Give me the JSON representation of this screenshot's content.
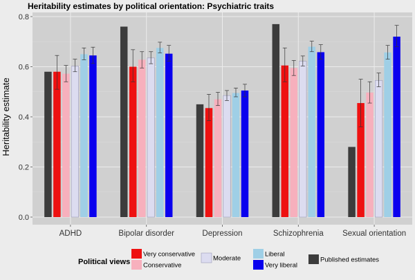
{
  "chart_data": {
    "type": "bar",
    "title": "Heritability estimates by political orientation: Psychiatric traits",
    "xlabel": "",
    "ylabel": "Heritability estimate",
    "ylim": [
      0,
      0.82
    ],
    "yticks": [
      0.0,
      0.2,
      0.4,
      0.6,
      0.8
    ],
    "ytick_labels": [
      "0.0",
      "0.2",
      "0.4",
      "0.6",
      "0.8"
    ],
    "grid": true,
    "categories": [
      "ADHD",
      "Bipolar disorder",
      "Depression",
      "Schizophrenia",
      "Sexual orientation"
    ],
    "series": [
      {
        "key": "published",
        "name": "Published estimates",
        "color": "#3c3c3c",
        "values": [
          0.58,
          0.76,
          0.45,
          0.77,
          0.28
        ],
        "err_low": null,
        "err_high": null
      },
      {
        "key": "very_conservative",
        "name": "Very conservative",
        "color": "#ee1111",
        "values": [
          0.58,
          0.6,
          0.435,
          0.605,
          0.455
        ],
        "err_low": [
          0.51,
          0.54,
          0.385,
          0.54,
          0.36
        ],
        "err_high": [
          0.645,
          0.668,
          0.49,
          0.675,
          0.55
        ]
      },
      {
        "key": "conservative",
        "name": "Conservative",
        "color": "#f7b0bd",
        "values": [
          0.572,
          0.628,
          0.47,
          0.595,
          0.497
        ],
        "err_low": [
          0.54,
          0.595,
          0.445,
          0.565,
          0.455
        ],
        "err_high": [
          0.605,
          0.66,
          0.498,
          0.625,
          0.54
        ]
      },
      {
        "key": "moderate",
        "name": "Moderate",
        "color": "#dcdcf0",
        "values": [
          0.602,
          0.635,
          0.485,
          0.622,
          0.545
        ],
        "err_low": [
          0.58,
          0.612,
          0.465,
          0.603,
          0.52
        ],
        "err_high": [
          0.63,
          0.66,
          0.505,
          0.643,
          0.575
        ]
      },
      {
        "key": "liberal",
        "name": "Liberal",
        "color": "#9fcfe6",
        "values": [
          0.65,
          0.675,
          0.495,
          0.68,
          0.657
        ],
        "err_low": [
          0.628,
          0.655,
          0.48,
          0.66,
          0.63
        ],
        "err_high": [
          0.675,
          0.698,
          0.515,
          0.702,
          0.685
        ]
      },
      {
        "key": "very_liberal",
        "name": "Very liberal",
        "color": "#0a00ee",
        "values": [
          0.645,
          0.652,
          0.505,
          0.658,
          0.72
        ],
        "err_low": [
          0.613,
          0.622,
          0.48,
          0.63,
          0.68
        ],
        "err_high": [
          0.678,
          0.685,
          0.53,
          0.688,
          0.765
        ]
      }
    ],
    "legend": {
      "title": "Political views",
      "placement": "bottom",
      "order": [
        "very_conservative",
        "conservative",
        "moderate",
        "liberal",
        "very_liberal",
        "published"
      ]
    }
  }
}
